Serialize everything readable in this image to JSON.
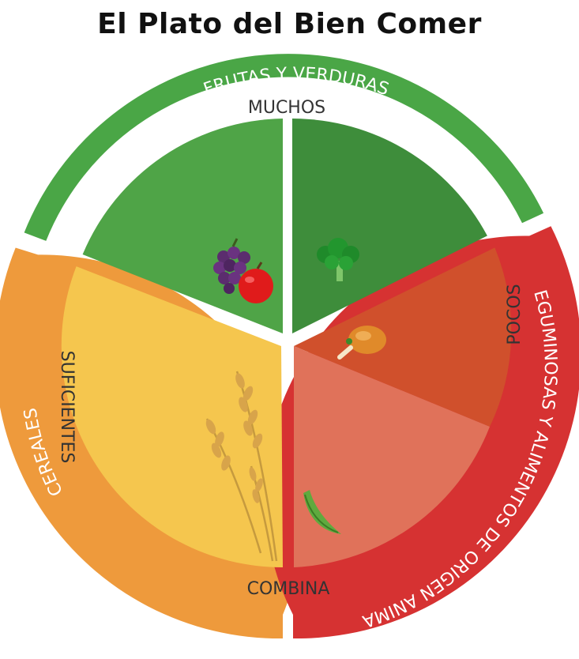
{
  "title": "El Plato del Bien Comer",
  "outer_ring": {
    "frutas_verduras": "FRUTAS Y VERDURAS",
    "cereales": "CEREALES",
    "leguminosas_animal": "LEGUMINOSAS Y ALIMENTOS DE ORIGEN ANIMAL"
  },
  "inner_labels": {
    "muchos": "MUCHOS",
    "suficientes": "SUFICIENTES",
    "pocos": "POCOS",
    "combina": "COMBINA"
  },
  "colors": {
    "ring_green": "#4aa646",
    "ring_orange": "#ee9a3c",
    "ring_red": "#d63232",
    "fruits": "#4fa447",
    "vegetables": "#3e8d3b",
    "cereals": "#f5c64e",
    "animal": "#d0502c",
    "legumes": "#e0725a"
  },
  "icons": [
    "grapes-apple-icon",
    "broccoli-icon",
    "chicken-leg-icon",
    "wheat-icon",
    "pea-pod-icon"
  ]
}
